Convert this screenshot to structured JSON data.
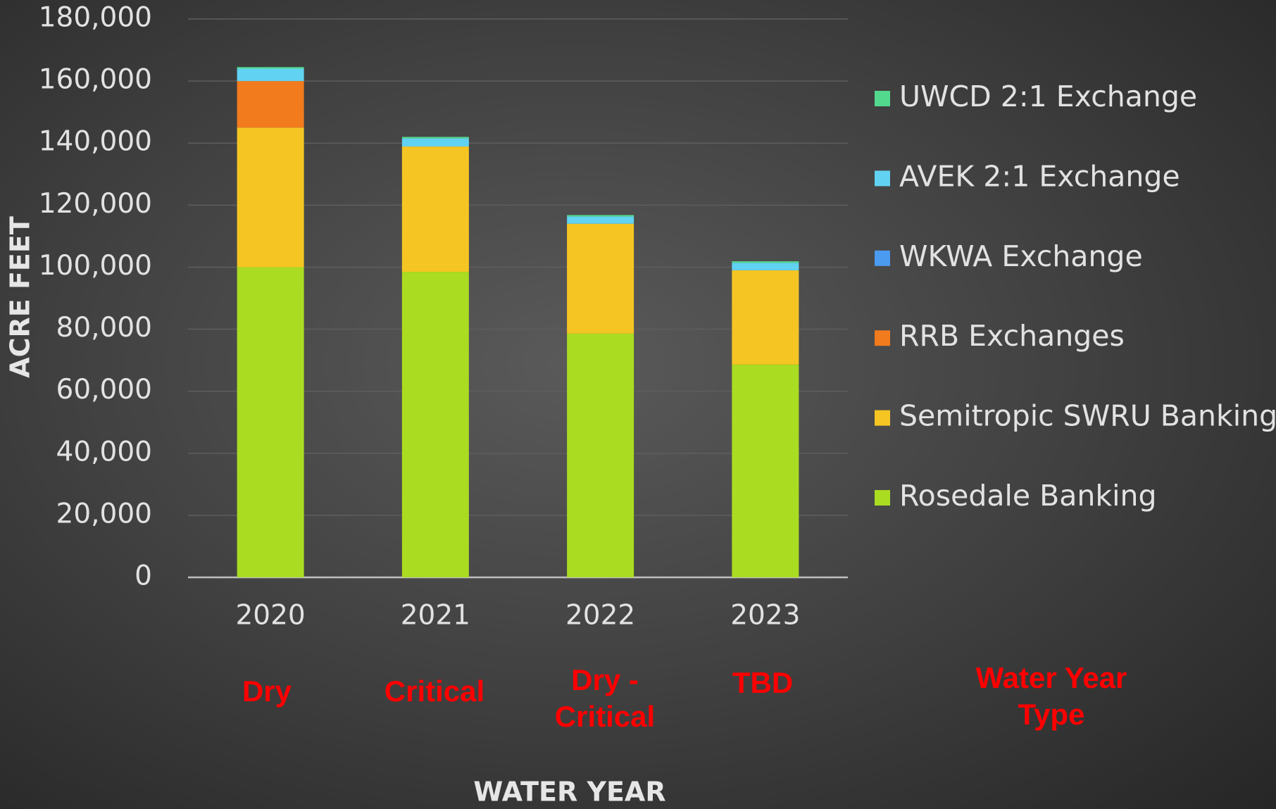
{
  "chart_data": {
    "type": "stacked_bar",
    "x_label": "WATER YEAR",
    "y_label": "ACRE FEET",
    "categories": [
      "2020",
      "2021",
      "2022",
      "2023"
    ],
    "series": [
      {
        "name": "Rosedale Banking",
        "color": "#aadc22",
        "values": [
          100000,
          98500,
          78600,
          68600
        ]
      },
      {
        "name": "Semitropic SWRU Banking",
        "color": "#f5c623",
        "values": [
          45000,
          40400,
          35400,
          30400
        ]
      },
      {
        "name": "RRB Exchanges",
        "color": "#f27b1e",
        "values": [
          15000,
          0,
          0,
          0
        ]
      },
      {
        "name": "WKWA Exchange",
        "color": "#4b9bf0",
        "values": [
          0,
          0,
          0,
          0
        ]
      },
      {
        "name": "AVEK 2:1 Exchange",
        "color": "#62d2f2",
        "values": [
          4000,
          2600,
          2300,
          2400
        ]
      },
      {
        "name": "UWCD 2:1 Exchange",
        "color": "#52d98e",
        "values": [
          500,
          500,
          500,
          500
        ]
      }
    ],
    "ylim": [
      0,
      180000
    ],
    "yticks": [
      0,
      {
        "value": 20000,
        "label": "20,000"
      },
      {
        "value": 40000,
        "label": "40,000"
      },
      {
        "value": 60000,
        "label": "60,000"
      },
      {
        "value": 80000,
        "label": "80,000"
      },
      {
        "value": 100000,
        "label": "100,000"
      },
      {
        "value": 120000,
        "label": "120,000"
      },
      {
        "value": 140000,
        "label": "140,000"
      },
      {
        "value": 160000,
        "label": "160,000"
      },
      {
        "value": 180000,
        "label": "180,000"
      }
    ],
    "grid": true,
    "legend": "right",
    "water_year_types": [
      "Dry",
      "Critical",
      "Dry - Critical",
      "TBD"
    ],
    "water_year_type_label": "Water Year Type"
  }
}
